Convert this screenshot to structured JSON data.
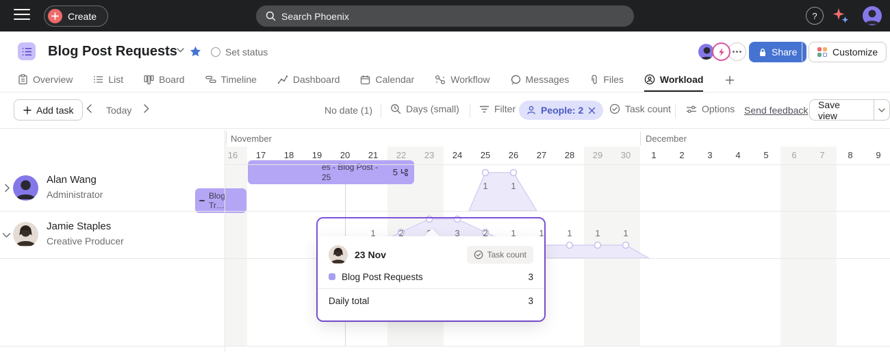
{
  "topbar": {
    "create_label": "Create",
    "search_placeholder": "Search Phoenix",
    "help_label": "?"
  },
  "header": {
    "title": "Blog Post Requests",
    "set_status_label": "Set status",
    "share_label": "Share",
    "customize_label": "Customize"
  },
  "tabs": [
    {
      "label": "Overview"
    },
    {
      "label": "List"
    },
    {
      "label": "Board"
    },
    {
      "label": "Timeline"
    },
    {
      "label": "Dashboard"
    },
    {
      "label": "Calendar"
    },
    {
      "label": "Workflow"
    },
    {
      "label": "Messages"
    },
    {
      "label": "Files"
    },
    {
      "label": "Workload",
      "active": true
    }
  ],
  "toolbar": {
    "add_task": "Add task",
    "today": "Today",
    "no_date": "No date (1)",
    "zoom_level": "Days (small)",
    "filter": "Filter",
    "people_chip": "People: 2",
    "task_count": "Task count",
    "options": "Options",
    "send_feedback": "Send feedback",
    "save_view": "Save view"
  },
  "users": [
    {
      "name": "Alan Wang",
      "role": "Administrator",
      "expanded": false
    },
    {
      "name": "Jamie Staples",
      "role": "Creative Producer",
      "expanded": true
    }
  ],
  "timeline": {
    "months": [
      "November",
      "December"
    ],
    "days": [
      {
        "month": "November",
        "day": 16,
        "weekend": true
      },
      {
        "month": "November",
        "day": 17
      },
      {
        "month": "November",
        "day": 18
      },
      {
        "month": "November",
        "day": 19
      },
      {
        "month": "November",
        "day": 20,
        "today": true
      },
      {
        "month": "November",
        "day": 21
      },
      {
        "month": "November",
        "day": 22,
        "weekend": true
      },
      {
        "month": "November",
        "day": 23,
        "weekend": true
      },
      {
        "month": "November",
        "day": 24
      },
      {
        "month": "November",
        "day": 25
      },
      {
        "month": "November",
        "day": 26
      },
      {
        "month": "November",
        "day": 27
      },
      {
        "month": "November",
        "day": 28
      },
      {
        "month": "November",
        "day": 29,
        "weekend": true
      },
      {
        "month": "November",
        "day": 30,
        "weekend": true
      },
      {
        "month": "December",
        "day": 1
      },
      {
        "month": "December",
        "day": 2
      },
      {
        "month": "December",
        "day": 3
      },
      {
        "month": "December",
        "day": 4
      },
      {
        "month": "December",
        "day": 5
      },
      {
        "month": "December",
        "day": 6,
        "weekend": true
      },
      {
        "month": "December",
        "day": 7,
        "weekend": true
      },
      {
        "month": "December",
        "day": 8
      },
      {
        "month": "December",
        "day": 9
      }
    ]
  },
  "chart_data": {
    "type": "area",
    "metric": "Task count",
    "ylim": [
      0,
      3
    ],
    "series": [
      {
        "name": "Alan Wang",
        "points": [
          {
            "month": "November",
            "day": 25,
            "value": 1
          },
          {
            "month": "November",
            "day": 26,
            "value": 1
          }
        ]
      },
      {
        "name": "Jamie Staples",
        "points": [
          {
            "month": "November",
            "day": 21,
            "value": 1
          },
          {
            "month": "November",
            "day": 22,
            "value": 2
          },
          {
            "month": "November",
            "day": 23,
            "value": 3
          },
          {
            "month": "November",
            "day": 24,
            "value": 3
          },
          {
            "month": "November",
            "day": 25,
            "value": 2
          },
          {
            "month": "November",
            "day": 26,
            "value": 1
          },
          {
            "month": "November",
            "day": 27,
            "value": 1
          },
          {
            "month": "November",
            "day": 28,
            "value": 1
          },
          {
            "month": "November",
            "day": 29,
            "value": 1
          },
          {
            "month": "November",
            "day": 30,
            "value": 1
          }
        ]
      }
    ],
    "colors": {
      "area_fill": "#eceafa",
      "area_stroke": "#d7d0f3",
      "point_stroke": "#c9c0ef"
    }
  },
  "tooltip": {
    "date": "23 Nov",
    "metric_label": "Task count",
    "series_label": "Blog Post Requests",
    "series_value": "3",
    "total_label": "Daily total",
    "total_value": "3"
  },
  "task_bars": [
    {
      "label_line1": "es - Blog Post -",
      "label_line2": "25",
      "badge": "5"
    },
    {
      "label": "Blog Tr…"
    }
  ]
}
